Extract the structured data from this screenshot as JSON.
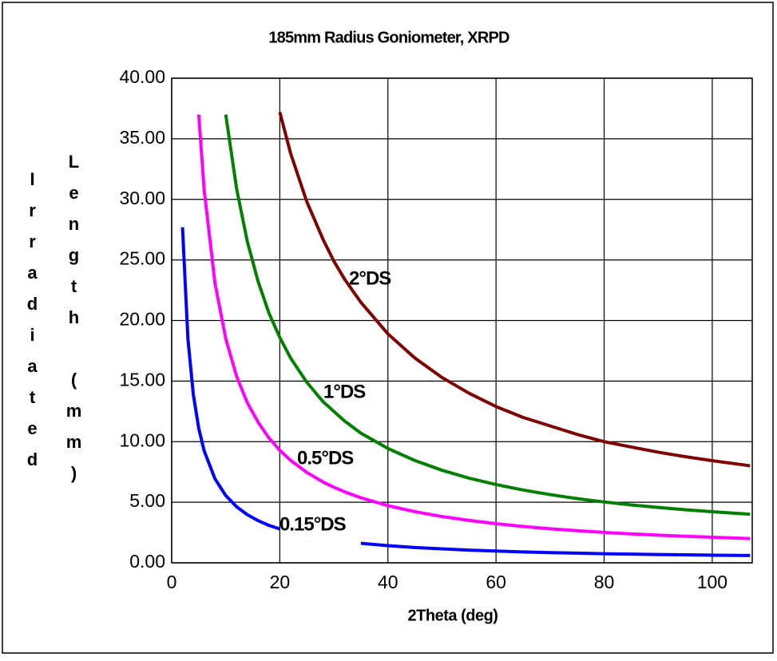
{
  "chart_data": {
    "type": "line",
    "title": "185mm Radius Goniometer, XRPD",
    "x_label": "2Theta (deg)",
    "y_label": [
      "Irradiated",
      "Length (mm)"
    ],
    "x": [
      1,
      2,
      3,
      4,
      5,
      6,
      8,
      10,
      12,
      14,
      16,
      18,
      20,
      22,
      25,
      28,
      30,
      32,
      35,
      40,
      45,
      50,
      55,
      60,
      65,
      70,
      75,
      80,
      85,
      90,
      95,
      100,
      107
    ],
    "series": [
      {
        "name": "0.15°DS",
        "color": "#0000ff",
        "values": [
          null,
          27.7,
          18.5,
          13.9,
          11.1,
          9.25,
          6.94,
          5.55,
          4.63,
          3.97,
          3.48,
          3.09,
          2.79,
          null,
          null,
          null,
          null,
          null,
          1.61,
          1.42,
          1.26,
          1.15,
          1.05,
          0.97,
          0.9,
          0.84,
          0.8,
          0.75,
          0.72,
          0.68,
          0.66,
          0.63,
          0.6
        ]
      },
      {
        "name": "0.5°DS",
        "color": "#ff00ff",
        "values": [
          null,
          null,
          null,
          null,
          37.0,
          30.8,
          23.1,
          18.5,
          15.4,
          13.2,
          11.6,
          10.3,
          9.29,
          8.46,
          7.46,
          6.67,
          6.24,
          5.86,
          5.37,
          4.72,
          4.22,
          3.82,
          3.5,
          3.23,
          3.0,
          2.81,
          2.65,
          2.51,
          2.39,
          2.28,
          2.19,
          2.11,
          2.0
        ]
      },
      {
        "name": "1°DS",
        "color": "#008000",
        "values": [
          null,
          null,
          null,
          null,
          null,
          null,
          null,
          37.0,
          30.9,
          26.5,
          23.2,
          20.6,
          18.6,
          16.9,
          14.9,
          13.3,
          12.5,
          11.7,
          10.7,
          9.44,
          8.44,
          7.64,
          6.99,
          6.46,
          6.01,
          5.63,
          5.3,
          5.02,
          4.78,
          4.57,
          4.38,
          4.22,
          4.01
        ]
      },
      {
        "name": "2°DS",
        "color": "#800000",
        "values": [
          null,
          null,
          null,
          null,
          null,
          null,
          null,
          null,
          null,
          null,
          null,
          null,
          37.2,
          33.8,
          29.8,
          26.7,
          24.9,
          23.4,
          21.5,
          18.9,
          16.9,
          15.3,
          14.0,
          12.9,
          12.0,
          11.3,
          10.6,
          10.0,
          9.56,
          9.13,
          8.76,
          8.43,
          8.01
        ]
      }
    ],
    "xlim": [
      0,
      107.4
    ],
    "xticks": [
      0,
      20,
      40,
      60,
      80,
      100
    ],
    "ylim": [
      0,
      40
    ],
    "yticks": [
      {
        "value": 0,
        "label": "0.00"
      },
      {
        "value": 5,
        "label": "5.00"
      },
      {
        "value": 10,
        "label": "10.00"
      },
      {
        "value": 15,
        "label": "15.00"
      },
      {
        "value": 20,
        "label": "20.00"
      },
      {
        "value": 25,
        "label": "25.00"
      },
      {
        "value": 30,
        "label": "30.00"
      },
      {
        "value": 35,
        "label": "35.00"
      },
      {
        "value": 40,
        "label": "40.00"
      }
    ],
    "grid": true
  }
}
